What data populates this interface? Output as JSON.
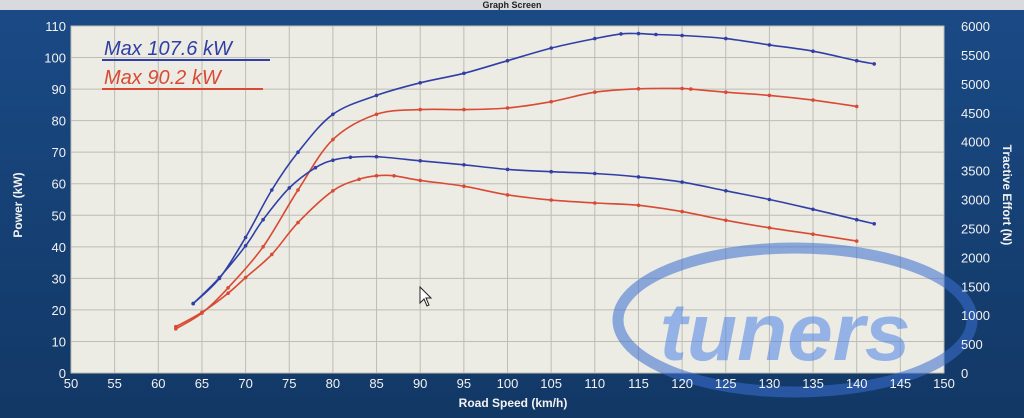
{
  "window": {
    "title": "Graph Screen"
  },
  "colors": {
    "background": "#1a4a86",
    "plot_area": "#ecebe4",
    "grid": "#bdbdb4",
    "blue_series": "#2f3fa6",
    "red_series": "#d94a34",
    "watermark": "#3b6fd1"
  },
  "watermark": {
    "text": "tuners",
    "icon": "tuners-logo-watermark"
  },
  "chart_data": {
    "type": "line",
    "xlabel": "Road Speed (km/h)",
    "ylabel_left": "Power (kW)",
    "ylabel_right": "Tractive Effort (N)",
    "xlim": [
      50,
      150
    ],
    "ylim_left": [
      0,
      110
    ],
    "ylim_right": [
      0,
      6000
    ],
    "x_ticks": [
      "50",
      "55",
      "60",
      "65",
      "70",
      "75",
      "80",
      "85",
      "90",
      "95",
      "100",
      "105",
      "110",
      "115",
      "120",
      "125",
      "130",
      "135",
      "140",
      "145",
      "150"
    ],
    "y_left_ticks": [
      "0",
      "10",
      "20",
      "30",
      "40",
      "50",
      "60",
      "70",
      "80",
      "90",
      "100",
      "110"
    ],
    "y_right_ticks": [
      "0",
      "500",
      "1000",
      "1500",
      "2000",
      "2500",
      "3000",
      "3500",
      "4000",
      "4500",
      "5000",
      "5500",
      "6000"
    ],
    "grid": true,
    "annotations": [
      {
        "text": "Max 107.6 kW",
        "series": "blue"
      },
      {
        "text": "Max 90.2 kW",
        "series": "red"
      }
    ],
    "series": [
      {
        "id": "blue-power",
        "color_key": "blue_series",
        "axis": "left",
        "x": [
          64,
          67,
          70,
          73,
          76,
          80,
          85,
          90,
          95,
          100,
          105,
          110,
          113,
          115,
          117,
          120,
          125,
          130,
          135,
          140,
          142
        ],
        "y": [
          22,
          30,
          43,
          58,
          70,
          82,
          88,
          92,
          95,
          99,
          103,
          106,
          107.5,
          107.6,
          107.3,
          107,
          106,
          104,
          102,
          99,
          98
        ]
      },
      {
        "id": "red-power",
        "color_key": "red_series",
        "axis": "left",
        "x": [
          62,
          65,
          68,
          72,
          76,
          80,
          85,
          90,
          95,
          100,
          105,
          110,
          115,
          120,
          121,
          125,
          130,
          135,
          140
        ],
        "y": [
          14,
          19,
          27,
          40,
          58,
          74,
          82,
          83.5,
          83.5,
          84,
          86,
          89,
          90.1,
          90.2,
          90.0,
          89,
          88,
          86.5,
          84.5
        ]
      },
      {
        "id": "blue-tractive-effort",
        "color_key": "blue_series",
        "axis": "right",
        "x": [
          64,
          67,
          70,
          72,
          75,
          78,
          80,
          82,
          85,
          90,
          95,
          100,
          105,
          110,
          115,
          120,
          125,
          130,
          135,
          140,
          142
        ],
        "y": [
          1200,
          1650,
          2200,
          2650,
          3200,
          3550,
          3680,
          3730,
          3740,
          3670,
          3600,
          3520,
          3480,
          3450,
          3390,
          3300,
          3150,
          3000,
          2830,
          2650,
          2580
        ]
      },
      {
        "id": "red-tractive-effort",
        "color_key": "red_series",
        "axis": "right",
        "x": [
          62,
          65,
          68,
          70,
          73,
          76,
          80,
          83,
          85,
          87,
          90,
          95,
          100,
          105,
          110,
          115,
          120,
          125,
          130,
          135,
          140
        ],
        "y": [
          800,
          1050,
          1380,
          1650,
          2050,
          2600,
          3150,
          3350,
          3410,
          3410,
          3330,
          3230,
          3080,
          2990,
          2940,
          2900,
          2790,
          2640,
          2510,
          2400,
          2280
        ]
      }
    ]
  }
}
